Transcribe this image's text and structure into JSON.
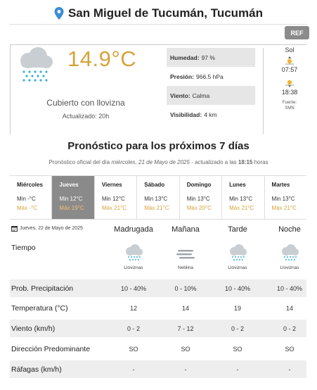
{
  "location": {
    "name": "San Miguel de Tucumán, Tucumán",
    "icon": "map-pin-icon"
  },
  "ref_button": "REF",
  "current": {
    "temperature": "14.9°C",
    "condition": "Cubierto con llovizna",
    "updated": "Actualizado: 20h",
    "icon": "drizzle-cloud-icon",
    "stats": [
      {
        "label": "Humedad:",
        "value": "97 %"
      },
      {
        "label": "Presión:",
        "value": "966.5 hPa"
      },
      {
        "label": "Viento:",
        "value": "Calma"
      },
      {
        "label": "Visibilidad:",
        "value": "4 km"
      }
    ],
    "sun": {
      "title": "Sol",
      "sunrise": "07:57",
      "sunset": "18:38",
      "source_line1": "Fuente:",
      "source_line2": "SMN"
    }
  },
  "forecast": {
    "title": "Pronóstico para los próximos 7 días",
    "subtitle_prefix": "Pronóstico oficial del día",
    "subtitle_date": "miércoles, 21 de Mayo de 2025",
    "subtitle_mid": "- actualizado a las",
    "subtitle_time": "18:15",
    "subtitle_suffix": "horas",
    "days": [
      {
        "name": "Miércoles",
        "min": "Min -°C",
        "max": "Máx -°C",
        "active": false
      },
      {
        "name": "Jueves",
        "min": "Min 12°C",
        "max": "Máx 19°C",
        "active": true
      },
      {
        "name": "Viernes",
        "min": "Min 12°C",
        "max": "Máx 21°C",
        "active": false
      },
      {
        "name": "Sábado",
        "min": "Min 13°C",
        "max": "Máx 21°C",
        "active": false
      },
      {
        "name": "Domingo",
        "min": "Min 13°C",
        "max": "Máx 20°C",
        "active": false
      },
      {
        "name": "Lunes",
        "min": "Min 13°C",
        "max": "Máx 21°C",
        "active": false
      },
      {
        "name": "Martes",
        "min": "Min 13°C",
        "max": "Máx 21°C",
        "active": false
      }
    ]
  },
  "detail": {
    "date": "Jueves, 22 de Mayo de 2025",
    "periods": [
      "Madrugada",
      "Mañana",
      "Tarde",
      "Noche"
    ],
    "tiempo_label": "Tiempo",
    "tiempo": [
      {
        "label": "Lloviznas",
        "icon": "drizzle-cloud-icon"
      },
      {
        "label": "Neblina",
        "icon": "fog-icon"
      },
      {
        "label": "Lloviznas",
        "icon": "drizzle-cloud-icon"
      },
      {
        "label": "Lloviznas",
        "icon": "drizzle-cloud-icon"
      }
    ],
    "rows": [
      {
        "label": "Prob. Precipitación",
        "values": [
          "10 - 40%",
          "0 - 10%",
          "10 - 40%",
          "10 - 40%"
        ]
      },
      {
        "label": "Temperatura (°C)",
        "values": [
          "12",
          "14",
          "19",
          "14"
        ]
      },
      {
        "label": "Viento (km/h)",
        "values": [
          "0 - 2",
          "7 - 12",
          "0 - 2",
          "0 - 2"
        ]
      },
      {
        "label": "Dirección Predominante",
        "values": [
          "SO",
          "SO",
          "SO",
          "SO"
        ]
      },
      {
        "label": "Ráfagas (km/h)",
        "values": [
          "-",
          "-",
          "-",
          "-"
        ]
      }
    ]
  },
  "colors": {
    "accent": "#d5a33b",
    "pin": "#3a8fd8",
    "active_day": "#8a8a8a",
    "drizzle": "#3ab0d8"
  }
}
